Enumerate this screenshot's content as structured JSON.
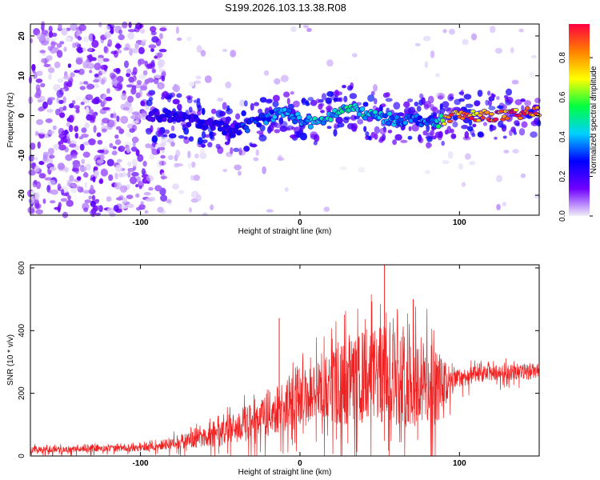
{
  "title": "S199.2026.103.13.38.R08",
  "chart_data": [
    {
      "type": "heatmap",
      "panel": "spectrogram",
      "xlabel": "Height of straight line (km)",
      "ylabel": "Frequency (Hz)",
      "xlim": [
        -169,
        150
      ],
      "ylim": [
        -25,
        23
      ],
      "xticks": [
        -100,
        0,
        100
      ],
      "xtick_labels": [
        "-100",
        "0",
        "100"
      ],
      "yticks": [
        -20,
        -10,
        0,
        10,
        20
      ],
      "ytick_labels": [
        "-20",
        "-10",
        "0",
        "10",
        "20"
      ],
      "colorbar": {
        "label": "Normalized spectral amplitude",
        "range": [
          0,
          0.97
        ],
        "ticks": [
          0.0,
          0.2,
          0.4,
          0.6,
          0.8
        ],
        "tick_labels": [
          "0.0",
          "0.2",
          "0.4",
          "0.6",
          "0.8"
        ],
        "colormap": [
          "#f0f0f8",
          "#7000ff",
          "#0000ff",
          "#00d0ff",
          "#00ff40",
          "#ffff00",
          "#ff8000",
          "#ff0040"
        ]
      },
      "ridge": {
        "description_x_km": [
          -95,
          -80,
          -60,
          -40,
          -25,
          -10,
          0,
          10,
          20,
          30,
          45,
          60,
          75,
          85,
          95,
          110,
          130,
          150
        ],
        "frequency_hz": [
          0,
          0,
          -2,
          -4,
          -1,
          1,
          -1,
          -2,
          0,
          2,
          0,
          -1,
          -1,
          -2,
          0,
          0,
          0,
          1
        ],
        "amplitude": [
          0.2,
          0.25,
          0.25,
          0.3,
          0.35,
          0.4,
          0.4,
          0.45,
          0.45,
          0.5,
          0.45,
          0.4,
          0.35,
          0.4,
          0.9,
          0.9,
          0.95,
          0.95
        ]
      }
    },
    {
      "type": "line",
      "panel": "snr",
      "xlabel": "Height of straight line (km)",
      "ylabel": "SNR (10 * v/v)",
      "xlim": [
        -169,
        150
      ],
      "ylim": [
        0,
        610
      ],
      "xticks": [
        -100,
        0,
        100
      ],
      "xtick_labels": [
        "-100",
        "0",
        "100"
      ],
      "yticks": [
        0,
        200,
        400,
        600
      ],
      "ytick_labels": [
        "0",
        "200",
        "400",
        "600"
      ],
      "color": "#ee2222",
      "envelope": {
        "x": [
          -169,
          -100,
          -80,
          -50,
          -30,
          0,
          20,
          40,
          55,
          70,
          85,
          95,
          100,
          120,
          150
        ],
        "mean": [
          20,
          25,
          40,
          70,
          110,
          180,
          220,
          250,
          260,
          240,
          220,
          230,
          250,
          265,
          270
        ],
        "spread": [
          10,
          10,
          20,
          40,
          60,
          90,
          120,
          150,
          160,
          150,
          130,
          40,
          30,
          25,
          25
        ]
      },
      "spikes": [
        {
          "x": -13,
          "y": 440
        },
        {
          "x": 53,
          "y": 610
        },
        {
          "x": 71,
          "y": 500
        }
      ]
    }
  ]
}
